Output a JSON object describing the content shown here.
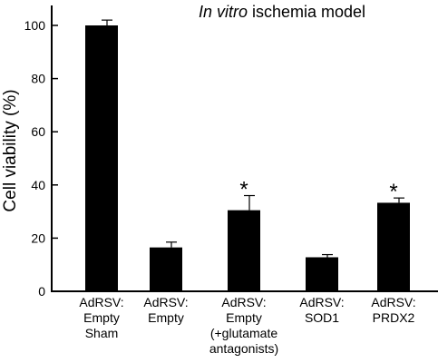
{
  "chart_data": {
    "type": "bar",
    "title_italic": "In vitro",
    "title_rest": " ischemia model",
    "ylabel": "Cell viability (%)",
    "xlabel": "",
    "ylim": [
      0,
      105
    ],
    "yticks": [
      0,
      20,
      40,
      60,
      80,
      100
    ],
    "grid": false,
    "categories": [
      [
        "AdRSV:",
        "Empty",
        "Sham"
      ],
      [
        "AdRSV:",
        "Empty"
      ],
      [
        "AdRSV:",
        "Empty",
        "(+glutamate",
        "antagonists)"
      ],
      [
        "AdRSV:",
        "SOD1"
      ],
      [
        "AdRSV:",
        "PRDX2"
      ]
    ],
    "values": [
      100,
      16.5,
      30.5,
      12.8,
      33.3
    ],
    "errors": [
      2,
      2,
      5.5,
      1,
      1.8
    ],
    "significance": [
      "",
      "",
      "*",
      "",
      "*"
    ],
    "bar_color": "#000000"
  }
}
